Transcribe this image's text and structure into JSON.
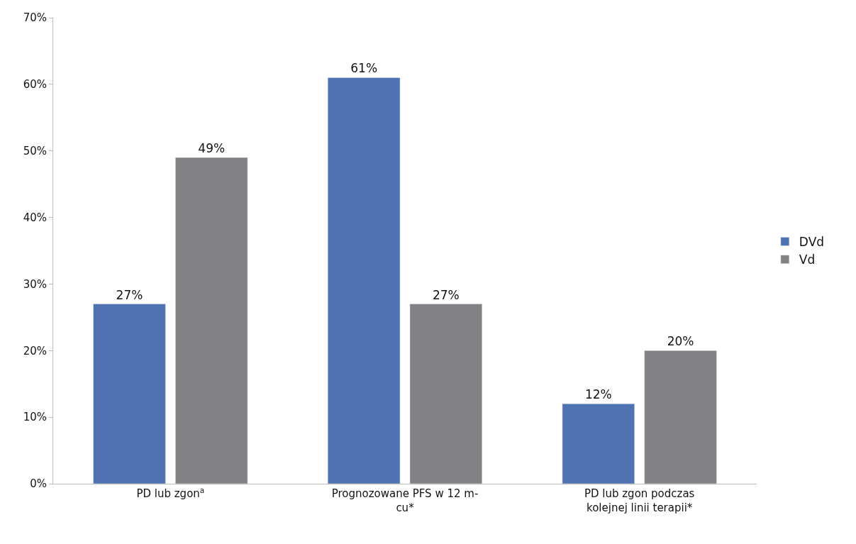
{
  "chart_data": {
    "type": "bar",
    "categories": [
      "PD lub zgon$^{a}$",
      "Prognozowane PFS w 12 m-\ncu*",
      "PD lub zgon podczas\nkolejnej linii terapii*"
    ],
    "series": [
      {
        "name": "DVd",
        "color": "#4f72b0",
        "values": [
          27,
          61,
          12
        ],
        "value_labels": [
          "27%",
          "61%",
          "12%"
        ]
      },
      {
        "name": "Vd",
        "color": "#828285",
        "values": [
          49,
          27,
          20
        ],
        "value_labels": [
          "49%",
          "27%",
          "20%"
        ]
      }
    ],
    "ylim": [
      0,
      70
    ],
    "yticks": [
      {
        "value": 0,
        "label": "0%"
      },
      {
        "value": 10,
        "label": "10%"
      },
      {
        "value": 20,
        "label": "20%"
      },
      {
        "value": 30,
        "label": "30%"
      },
      {
        "value": 40,
        "label": "40%"
      },
      {
        "value": 50,
        "label": "50%"
      },
      {
        "value": 60,
        "label": "60%"
      },
      {
        "value": 70,
        "label": "70%"
      }
    ],
    "legend": "right"
  }
}
